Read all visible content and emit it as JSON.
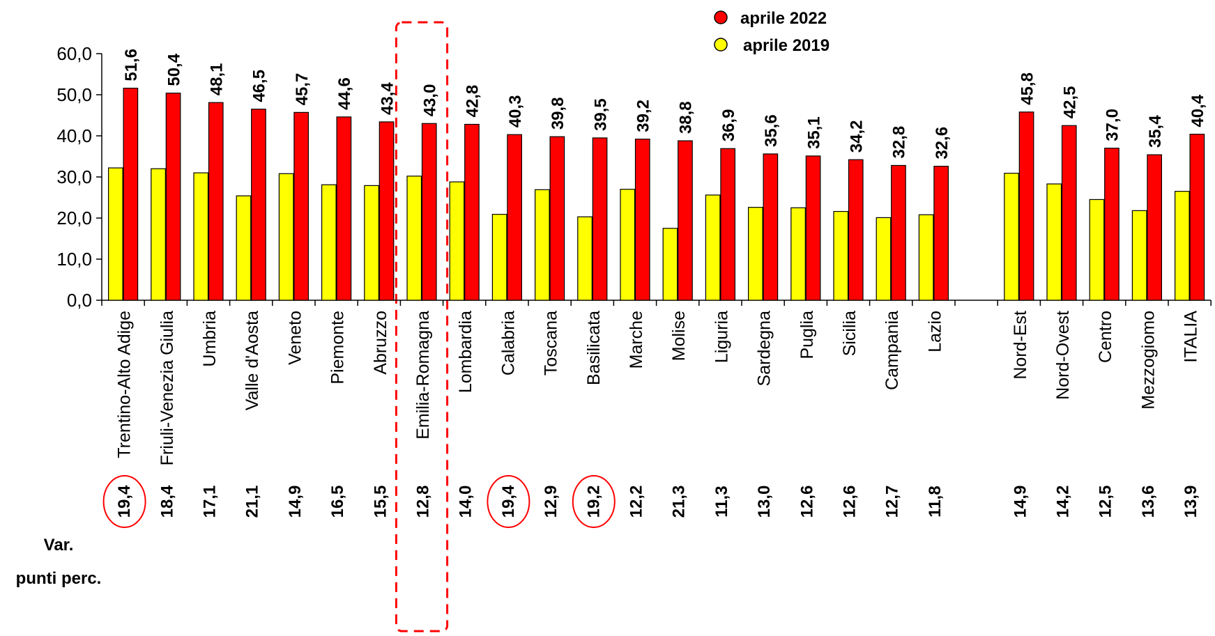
{
  "chart_data": {
    "type": "bar",
    "categories": [
      "Trentino-Alto Adige",
      "Friuli-Venezia Giulia",
      "Umbria",
      "Valle d'Aosta",
      "Veneto",
      "Piemonte",
      "Abruzzo",
      "Emilia-Romagna",
      "Lombardia",
      "Calabria",
      "Toscana",
      "Basilicata",
      "Marche",
      "Molise",
      "Liguria",
      "Sardegna",
      "Puglia",
      "Sicilia",
      "Campania",
      "Lazio",
      "",
      "Nord-Est",
      "Nord-Ovest",
      "Centro",
      "Mezzogiomo",
      "ITALIA"
    ],
    "series": [
      {
        "name": "aprile 2019",
        "color": "#FFFF00",
        "values": [
          32.2,
          32.0,
          31.0,
          25.4,
          30.8,
          28.1,
          27.9,
          30.2,
          28.8,
          20.9,
          26.9,
          20.3,
          27.0,
          17.5,
          25.6,
          22.6,
          22.5,
          21.6,
          20.1,
          20.8,
          null,
          30.9,
          28.3,
          24.5,
          21.8,
          26.5
        ]
      },
      {
        "name": "aprile 2022",
        "color": "#FF0000",
        "values": [
          51.6,
          50.4,
          48.1,
          46.5,
          45.7,
          44.6,
          43.4,
          43.0,
          42.8,
          40.3,
          39.8,
          39.5,
          39.2,
          38.8,
          36.9,
          35.6,
          35.1,
          34.2,
          32.8,
          32.6,
          null,
          45.8,
          42.5,
          37.0,
          35.4,
          40.4
        ]
      }
    ],
    "value_labels_2022": [
      "51,6",
      "50,4",
      "48,1",
      "46,5",
      "45,7",
      "44,6",
      "43,4",
      "43,0",
      "42,8",
      "40,3",
      "39,8",
      "39,5",
      "39,2",
      "38,8",
      "36,9",
      "35,6",
      "35,1",
      "34,2",
      "32,8",
      "32,6",
      "",
      "45,8",
      "42,5",
      "37,0",
      "35,4",
      "40,4"
    ],
    "var_title_line1": "Var.",
    "var_title_line2": "punti perc.",
    "var_labels": [
      "19,4",
      "18,4",
      "17,1",
      "21,1",
      "14,9",
      "16,5",
      "15,5",
      "12,8",
      "14,0",
      "19,4",
      "12,9",
      "19,2",
      "12,2",
      "21,3",
      "11,3",
      "13,0",
      "12,6",
      "12,6",
      "12,7",
      "11,8",
      "",
      "14,9",
      "14,2",
      "12,5",
      "13,6",
      "13,9"
    ],
    "circled_var_indices": [
      0,
      9,
      11
    ],
    "highlighted_category": "Emilia-Romagna",
    "y_ticks": [
      "0,0",
      "10,0",
      "20,0",
      "30,0",
      "40,0",
      "50,0",
      "60,0"
    ],
    "ylim": [
      0,
      60
    ],
    "legend": {
      "placement": "top-right",
      "items": [
        {
          "label": "aprile 2022",
          "color": "#FF0000"
        },
        {
          "label": "aprile 2019",
          "color": "#FFFF00"
        }
      ]
    },
    "grid": false,
    "highlight_color": "#FF0000"
  }
}
